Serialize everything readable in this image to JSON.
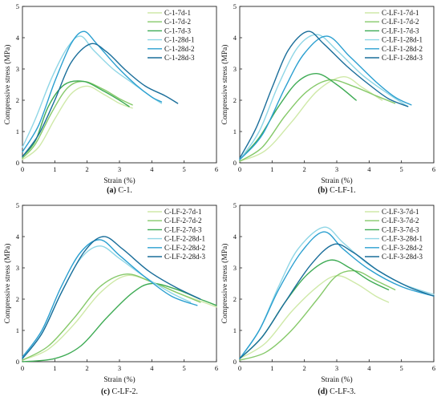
{
  "chart_data": [
    {
      "type": "line",
      "caption_letter": "(a)",
      "caption_text": " C-1.",
      "xlabel": "Strain (%)",
      "ylabel": "Compressive stress (MPa)",
      "xlim": [
        0,
        6
      ],
      "ylim": [
        0,
        5
      ],
      "xticks": [
        0,
        1,
        2,
        3,
        4,
        5,
        6
      ],
      "yticks": [
        0,
        1,
        2,
        3,
        4,
        5
      ],
      "legend_position": "top-right",
      "series": [
        {
          "name": "C-1-7d-1",
          "color": "#cfe9a8",
          "x": [
            0,
            0.5,
            1.0,
            1.5,
            2.0,
            2.5,
            3.0,
            3.4
          ],
          "y": [
            0.1,
            0.5,
            1.4,
            2.2,
            2.45,
            2.2,
            1.9,
            1.75
          ]
        },
        {
          "name": "C-1-7d-2",
          "color": "#86c96a",
          "x": [
            0,
            0.4,
            0.9,
            1.4,
            1.9,
            2.5,
            3.0,
            3.4
          ],
          "y": [
            0.15,
            0.6,
            1.6,
            2.4,
            2.6,
            2.35,
            2.05,
            1.85
          ]
        },
        {
          "name": "C-1-7d-3",
          "color": "#3eab54",
          "x": [
            0,
            0.4,
            0.8,
            1.3,
            1.9,
            2.5,
            3.0,
            3.3
          ],
          "y": [
            0.2,
            0.7,
            1.8,
            2.5,
            2.6,
            2.3,
            2.0,
            1.8
          ]
        },
        {
          "name": "C-1-28d-1",
          "color": "#8fd6e6",
          "x": [
            0,
            0.4,
            0.9,
            1.4,
            1.8,
            2.2,
            2.8,
            3.4,
            4.0,
            4.3
          ],
          "y": [
            0.5,
            1.4,
            2.7,
            3.7,
            4.05,
            3.6,
            3.0,
            2.55,
            2.1,
            1.9
          ]
        },
        {
          "name": "C-1-28d-2",
          "color": "#2a9fd0",
          "x": [
            0,
            0.5,
            1.0,
            1.5,
            1.9,
            2.3,
            2.9,
            3.5,
            4.0,
            4.3
          ],
          "y": [
            0.35,
            1.2,
            2.6,
            3.8,
            4.2,
            3.8,
            3.1,
            2.5,
            2.1,
            1.95
          ]
        },
        {
          "name": "C-1-28d-3",
          "color": "#1a6e9a",
          "x": [
            0,
            0.5,
            1.0,
            1.5,
            2.1,
            2.6,
            3.2,
            3.8,
            4.4,
            4.8
          ],
          "y": [
            0.2,
            0.9,
            2.0,
            3.2,
            3.8,
            3.55,
            2.95,
            2.45,
            2.15,
            1.9
          ]
        }
      ]
    },
    {
      "type": "line",
      "caption_letter": "(b)",
      "caption_text": " C-LF-1.",
      "xlabel": "Strain (%)",
      "ylabel": "Compressive stress (MPa)",
      "xlim": [
        0,
        6
      ],
      "ylim": [
        0,
        5
      ],
      "xticks": [
        0,
        1,
        2,
        3,
        4,
        5,
        6
      ],
      "yticks": [
        0,
        1,
        2,
        3,
        4,
        5
      ],
      "legend_position": "top-right",
      "series": [
        {
          "name": "C-LF-1-7d-1",
          "color": "#cfe9a8",
          "x": [
            0,
            0.8,
            1.6,
            2.4,
            3.2,
            3.8,
            4.4
          ],
          "y": [
            0.05,
            0.4,
            1.3,
            2.3,
            2.75,
            2.4,
            2.0
          ]
        },
        {
          "name": "C-LF-1-7d-2",
          "color": "#86c96a",
          "x": [
            0,
            0.7,
            1.4,
            2.1,
            2.8,
            3.5,
            4.2,
            4.8
          ],
          "y": [
            0.05,
            0.5,
            1.5,
            2.3,
            2.65,
            2.45,
            2.15,
            1.9
          ]
        },
        {
          "name": "C-LF-1-7d-3",
          "color": "#3eab54",
          "x": [
            0,
            0.6,
            1.2,
            1.8,
            2.4,
            3.0,
            3.6
          ],
          "y": [
            0.1,
            0.8,
            1.8,
            2.6,
            2.85,
            2.5,
            2.0
          ]
        },
        {
          "name": "C-LF-1-28d-1",
          "color": "#8fd6e6",
          "x": [
            0,
            0.6,
            1.2,
            1.8,
            2.4,
            3.0,
            3.8,
            4.6,
            5.2
          ],
          "y": [
            0.1,
            1.0,
            2.5,
            3.7,
            4.1,
            3.6,
            2.8,
            2.2,
            1.8
          ]
        },
        {
          "name": "C-LF-1-28d-2",
          "color": "#2a9fd0",
          "x": [
            0,
            0.7,
            1.4,
            2.0,
            2.7,
            3.4,
            4.2,
            4.8,
            5.3
          ],
          "y": [
            0.1,
            0.9,
            2.4,
            3.5,
            4.05,
            3.4,
            2.6,
            2.1,
            1.85
          ]
        },
        {
          "name": "C-LF-1-28d-3",
          "color": "#1a6e9a",
          "x": [
            0,
            0.5,
            1.0,
            1.5,
            2.1,
            2.6,
            3.3,
            4.0,
            4.6,
            5.2
          ],
          "y": [
            0.15,
            1.1,
            2.4,
            3.6,
            4.2,
            3.8,
            3.1,
            2.5,
            2.05,
            1.8
          ]
        }
      ]
    },
    {
      "type": "line",
      "caption_letter": "(c)",
      "caption_text": " C-LF-2.",
      "xlabel": "Strain (%)",
      "ylabel": "Compressive stress (MPa)",
      "xlim": [
        0,
        6
      ],
      "ylim": [
        0,
        5
      ],
      "xticks": [
        0,
        1,
        2,
        3,
        4,
        5,
        6
      ],
      "yticks": [
        0,
        1,
        2,
        3,
        4,
        5
      ],
      "legend_position": "top-right",
      "series": [
        {
          "name": "C-LF-2-7d-1",
          "color": "#cfe9a8",
          "x": [
            0,
            0.8,
            1.6,
            2.4,
            3.2,
            4.0,
            4.8,
            5.6,
            6.0
          ],
          "y": [
            0.05,
            0.4,
            1.2,
            2.2,
            2.75,
            2.55,
            2.2,
            1.9,
            1.75
          ]
        },
        {
          "name": "C-LF-2-7d-2",
          "color": "#86c96a",
          "x": [
            0,
            0.8,
            1.6,
            2.4,
            3.2,
            4.0,
            4.8,
            5.5
          ],
          "y": [
            0.05,
            0.5,
            1.4,
            2.4,
            2.8,
            2.55,
            2.2,
            1.9
          ]
        },
        {
          "name": "C-LF-2-7d-3",
          "color": "#3eab54",
          "x": [
            0,
            1.0,
            1.8,
            2.6,
            3.4,
            4.0,
            4.8,
            5.5,
            6.0
          ],
          "y": [
            0.0,
            0.1,
            0.5,
            1.4,
            2.2,
            2.5,
            2.3,
            2.0,
            1.8
          ]
        },
        {
          "name": "C-LF-2-28d-1",
          "color": "#8fd6e6",
          "x": [
            0,
            0.6,
            1.2,
            1.8,
            2.4,
            3.0,
            3.8,
            4.6,
            5.2
          ],
          "y": [
            0.1,
            0.9,
            2.2,
            3.3,
            3.7,
            3.3,
            2.7,
            2.2,
            1.9
          ]
        },
        {
          "name": "C-LF-2-28d-2",
          "color": "#2a9fd0",
          "x": [
            0,
            0.6,
            1.2,
            1.8,
            2.4,
            3.0,
            3.8,
            4.6,
            5.4
          ],
          "y": [
            0.15,
            1.0,
            2.4,
            3.5,
            3.9,
            3.4,
            2.7,
            2.1,
            1.8
          ]
        },
        {
          "name": "C-LF-2-28d-3",
          "color": "#1a6e9a",
          "x": [
            0,
            0.6,
            1.2,
            1.9,
            2.5,
            3.1,
            3.9,
            4.7,
            5.5
          ],
          "y": [
            0.1,
            0.9,
            2.2,
            3.5,
            4.0,
            3.6,
            2.9,
            2.4,
            2.0
          ]
        }
      ]
    },
    {
      "type": "line",
      "caption_letter": "(d)",
      "caption_text": " C-LF-3.",
      "xlabel": "Strain (%)",
      "ylabel": "Compressive stress (MPa)",
      "xlim": [
        0,
        6
      ],
      "ylim": [
        0,
        5
      ],
      "xticks": [
        0,
        1,
        2,
        3,
        4,
        5,
        6
      ],
      "yticks": [
        0,
        1,
        2,
        3,
        4,
        5
      ],
      "legend_position": "top-right",
      "series": [
        {
          "name": "C-LF-3-7d-1",
          "color": "#cfe9a8",
          "x": [
            0,
            0.8,
            1.6,
            2.4,
            3.0,
            3.6,
            4.2,
            4.6
          ],
          "y": [
            0.1,
            0.6,
            1.6,
            2.4,
            2.75,
            2.5,
            2.1,
            1.9
          ]
        },
        {
          "name": "C-LF-3-7d-2",
          "color": "#86c96a",
          "x": [
            0,
            0.8,
            1.6,
            2.4,
            3.0,
            3.6,
            4.2,
            4.8
          ],
          "y": [
            0.05,
            0.3,
            1.0,
            2.0,
            2.75,
            2.9,
            2.6,
            2.3
          ]
        },
        {
          "name": "C-LF-3-7d-3",
          "color": "#3eab54",
          "x": [
            0,
            0.7,
            1.4,
            2.1,
            2.8,
            3.4,
            4.0,
            4.6
          ],
          "y": [
            0.1,
            0.8,
            1.9,
            2.8,
            3.25,
            3.0,
            2.6,
            2.3
          ]
        },
        {
          "name": "C-LF-3-28d-1",
          "color": "#8fd6e6",
          "x": [
            0,
            0.6,
            1.2,
            1.8,
            2.6,
            3.2,
            4.0,
            5.0,
            6.0
          ],
          "y": [
            0.1,
            1.0,
            2.4,
            3.6,
            4.3,
            3.8,
            3.1,
            2.5,
            2.15
          ]
        },
        {
          "name": "C-LF-3-28d-2",
          "color": "#2a9fd0",
          "x": [
            0,
            0.6,
            1.2,
            1.9,
            2.6,
            3.2,
            4.0,
            5.0,
            6.0
          ],
          "y": [
            0.1,
            1.0,
            2.3,
            3.5,
            4.15,
            3.6,
            2.95,
            2.4,
            2.1
          ]
        },
        {
          "name": "C-LF-3-28d-3",
          "color": "#1a6e9a",
          "x": [
            0,
            0.7,
            1.4,
            2.2,
            2.9,
            3.5,
            4.3,
            5.2,
            6.0
          ],
          "y": [
            0.1,
            0.8,
            1.9,
            3.1,
            3.75,
            3.5,
            2.9,
            2.4,
            2.1
          ]
        }
      ]
    }
  ]
}
